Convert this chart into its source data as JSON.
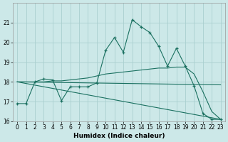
{
  "xlabel": "Humidex (Indice chaleur)",
  "xlim": [
    -0.5,
    23.5
  ],
  "ylim": [
    16,
    22
  ],
  "yticks": [
    16,
    17,
    18,
    19,
    20,
    21
  ],
  "xticks": [
    0,
    1,
    2,
    3,
    4,
    5,
    6,
    7,
    8,
    9,
    10,
    11,
    12,
    13,
    14,
    15,
    16,
    17,
    18,
    19,
    20,
    21,
    22,
    23
  ],
  "bg_color": "#cce8e8",
  "grid_color": "#aacfcf",
  "line_color": "#1a7060",
  "line1_x": [
    0,
    1,
    2,
    3,
    4,
    5,
    6,
    7,
    8,
    9,
    10,
    11,
    12,
    13,
    14,
    15,
    16,
    17,
    18,
    19,
    20,
    21,
    22,
    23
  ],
  "line1_y": [
    16.9,
    16.9,
    18.0,
    18.15,
    18.1,
    17.05,
    17.75,
    17.75,
    17.75,
    17.95,
    19.6,
    20.25,
    19.5,
    21.15,
    20.8,
    20.5,
    19.8,
    18.8,
    19.7,
    18.8,
    17.8,
    16.4,
    16.1,
    16.1
  ],
  "line2_x": [
    0,
    1,
    2,
    3,
    4,
    5,
    6,
    7,
    8,
    9,
    10,
    11,
    12,
    13,
    14,
    15,
    16,
    17,
    18,
    19,
    20,
    21,
    22,
    23
  ],
  "line2_y": [
    18.0,
    18.0,
    18.0,
    18.0,
    18.05,
    18.05,
    18.1,
    18.15,
    18.2,
    18.3,
    18.4,
    18.45,
    18.5,
    18.55,
    18.6,
    18.65,
    18.7,
    18.7,
    18.75,
    18.75,
    18.4,
    17.5,
    16.5,
    16.1
  ],
  "line3_x": [
    0,
    23
  ],
  "line3_y": [
    18.0,
    17.85
  ],
  "line4_x": [
    0,
    23
  ],
  "line4_y": [
    18.0,
    16.1
  ]
}
